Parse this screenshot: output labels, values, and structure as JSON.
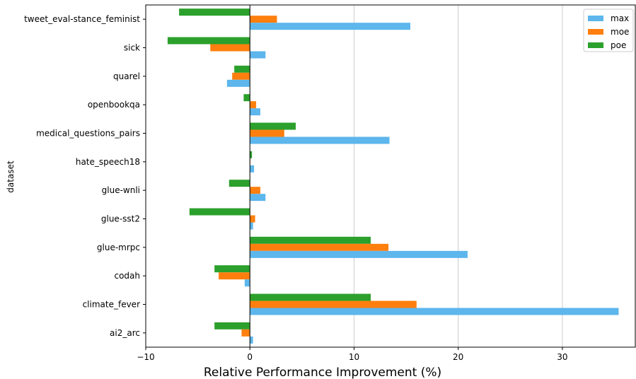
{
  "chart_data": {
    "type": "bar",
    "orientation": "horizontal",
    "categories": [
      "tweet_eval-stance_feminist",
      "sick",
      "quarel",
      "openbookqa",
      "medical_questions_pairs",
      "hate_speech18",
      "glue-wnli",
      "glue-sst2",
      "glue-mrpc",
      "codah",
      "climate_fever",
      "ai2_arc"
    ],
    "series": [
      {
        "name": "max",
        "color": "#5db6ec",
        "values": [
          15.4,
          1.5,
          -2.2,
          1.0,
          13.4,
          0.4,
          1.5,
          0.3,
          20.9,
          -0.5,
          35.4,
          0.3
        ]
      },
      {
        "name": "moe",
        "color": "#ff7f0e",
        "values": [
          2.6,
          -3.8,
          -1.7,
          0.6,
          3.3,
          0.0,
          1.0,
          0.5,
          13.3,
          -3.0,
          16.0,
          -0.8
        ]
      },
      {
        "name": "poe",
        "color": "#2ca02c",
        "values": [
          -6.8,
          -7.9,
          -1.5,
          -0.6,
          4.4,
          0.2,
          -2.0,
          -5.8,
          11.6,
          -3.4,
          11.6,
          -3.4
        ]
      }
    ],
    "xlabel": "Relative Performance Improvement (%)",
    "ylabel": "dataset",
    "xlim": [
      -10,
      37
    ],
    "xticks": [
      -10,
      0,
      10,
      20,
      30
    ],
    "grid": "vertical",
    "legend_position": "top-right"
  }
}
